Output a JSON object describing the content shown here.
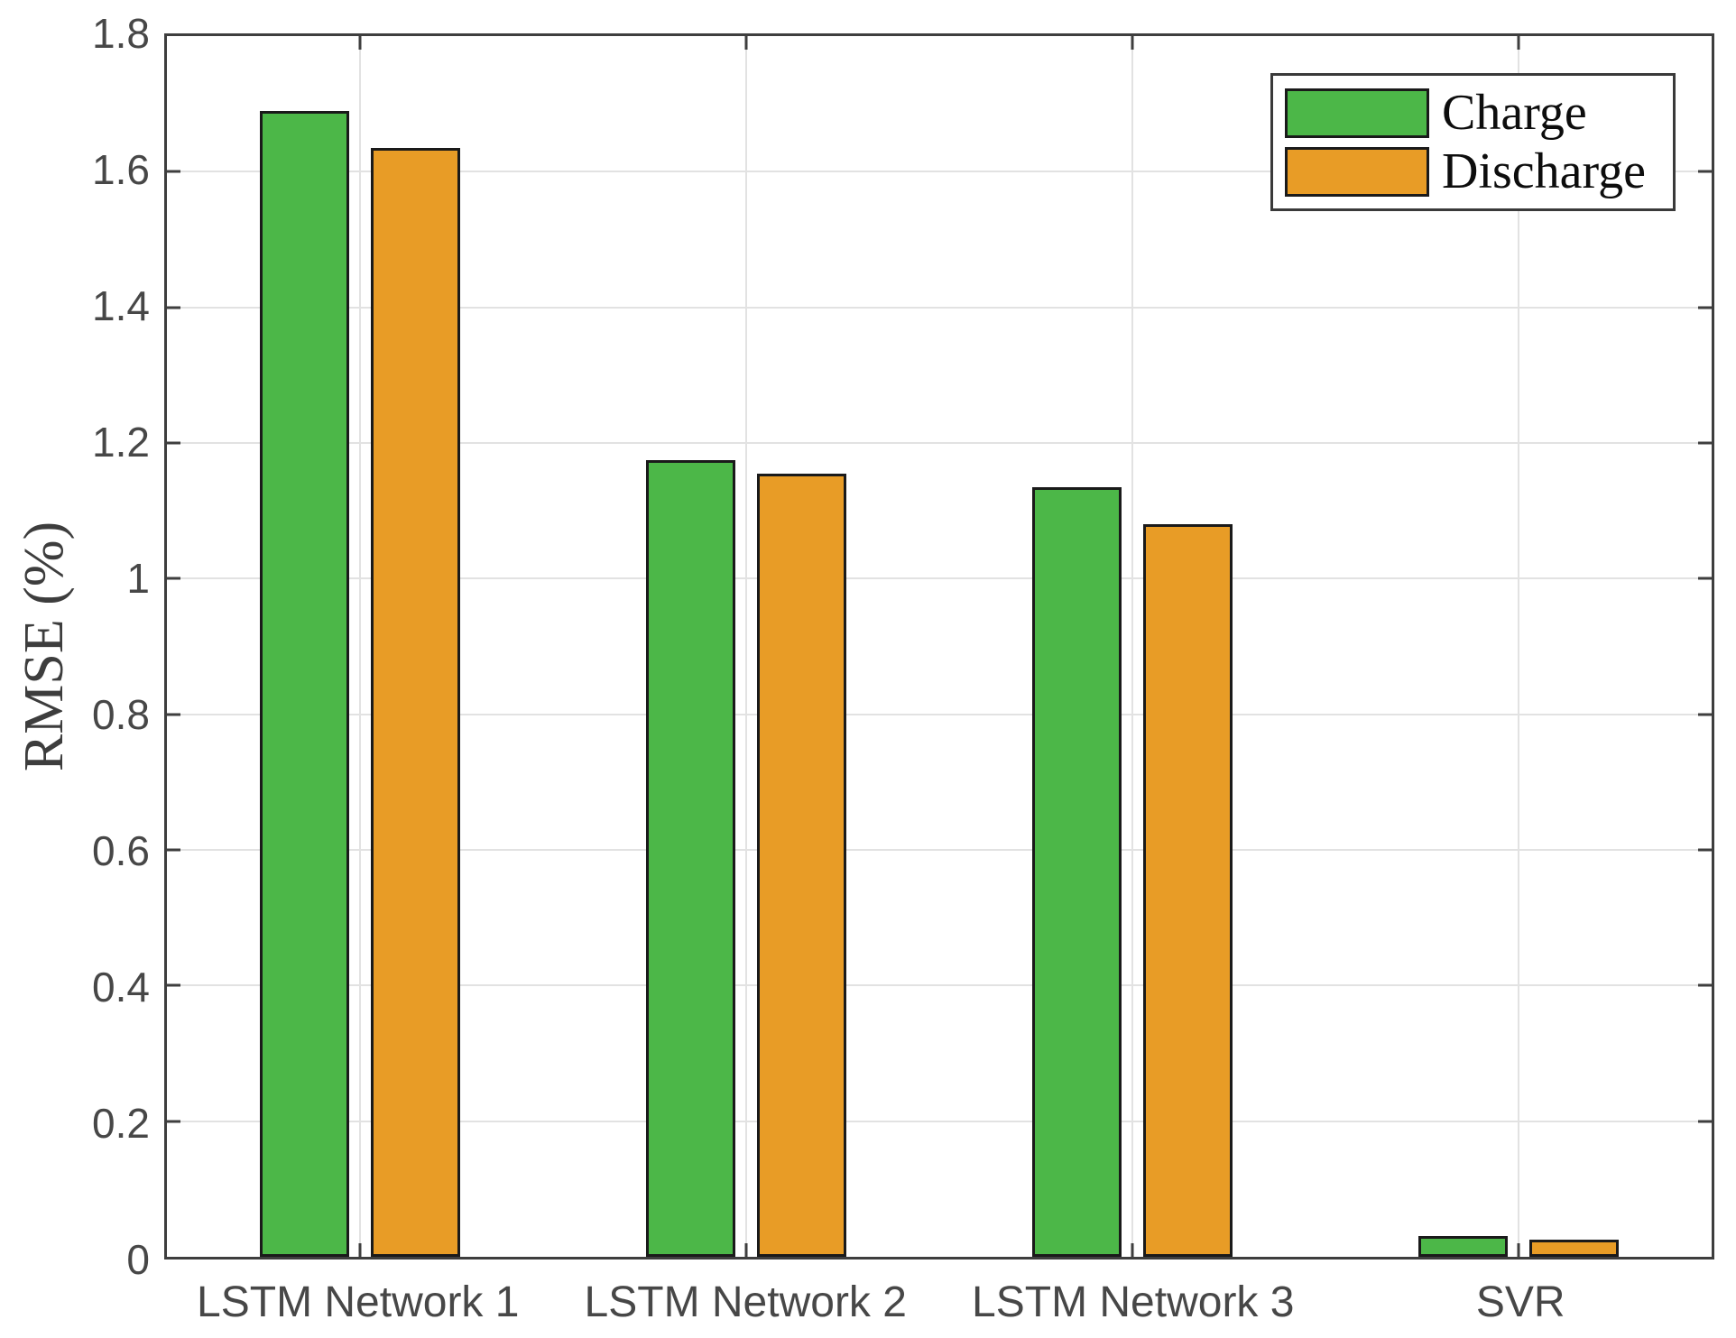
{
  "chart_data": {
    "type": "bar",
    "title": "",
    "categories": [
      "LSTM Network 1",
      "LSTM Network 2",
      "LSTM Network 3",
      "SVR"
    ],
    "series": [
      {
        "name": "Charge",
        "color": "#4CB748",
        "values": [
          1.69,
          1.175,
          1.135,
          0.03
        ]
      },
      {
        "name": "Discharge",
        "color": "#E89C26",
        "values": [
          1.635,
          1.155,
          1.08,
          0.025
        ]
      }
    ],
    "xlabel": "",
    "ylabel": "RMSE (%)",
    "ylim": [
      0,
      1.8
    ],
    "yticks": [
      0,
      0.2,
      0.4,
      0.6,
      0.8,
      1,
      1.2,
      1.4,
      1.6,
      1.8
    ],
    "ytick_labels": [
      "0",
      "0.2",
      "0.4",
      "0.6",
      "0.8",
      "1",
      "1.2",
      "1.4",
      "1.6",
      "1.8"
    ],
    "grid": true,
    "legend_position": "top-right"
  },
  "colors": {
    "axis": "#3e3e3e",
    "grid": "#e2e2e2",
    "tick_text": "#474747",
    "bar_edge": "#1a1a1a",
    "background": "#ffffff"
  }
}
